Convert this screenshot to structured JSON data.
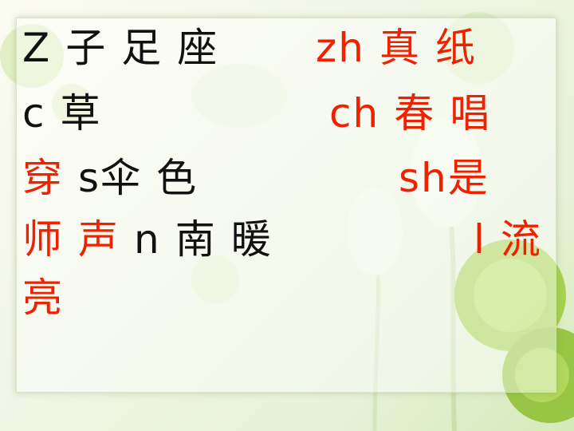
{
  "colors": {
    "text_black": "#111111",
    "text_red": "#ee2200",
    "background": "#eef4e2"
  },
  "lines": [
    {
      "left": [
        {
          "text": "Z",
          "color": "black"
        },
        {
          "text": "子",
          "color": "black"
        },
        {
          "text": "足",
          "color": "black"
        },
        {
          "text": "座",
          "color": "black"
        }
      ],
      "right": [
        {
          "text": "zh",
          "color": "red"
        },
        {
          "text": "真",
          "color": "red"
        },
        {
          "text": "纸",
          "color": "red"
        }
      ]
    },
    {
      "left": [
        {
          "text": "c",
          "color": "black"
        },
        {
          "text": "草",
          "color": "black"
        }
      ],
      "right": [
        {
          "text": "ch",
          "color": "red"
        },
        {
          "text": "春",
          "color": "red"
        },
        {
          "text": "唱",
          "color": "red"
        }
      ]
    },
    {
      "left": [
        {
          "text": "穿",
          "color": "red"
        },
        {
          "text": "s伞",
          "color": "black"
        },
        {
          "text": "色",
          "color": "black"
        }
      ],
      "right": [
        {
          "text": "sh是",
          "color": "red"
        }
      ]
    },
    {
      "left": [
        {
          "text": "师",
          "color": "red"
        },
        {
          "text": "声",
          "color": "red"
        },
        {
          "text": "n",
          "color": "black"
        },
        {
          "text": "南",
          "color": "black"
        },
        {
          "text": "暖",
          "color": "black"
        }
      ],
      "right": [
        {
          "text": "l",
          "color": "red"
        },
        {
          "text": "流",
          "color": "red"
        }
      ]
    },
    {
      "left": [
        {
          "text": "亮",
          "color": "red"
        }
      ],
      "right": []
    }
  ]
}
